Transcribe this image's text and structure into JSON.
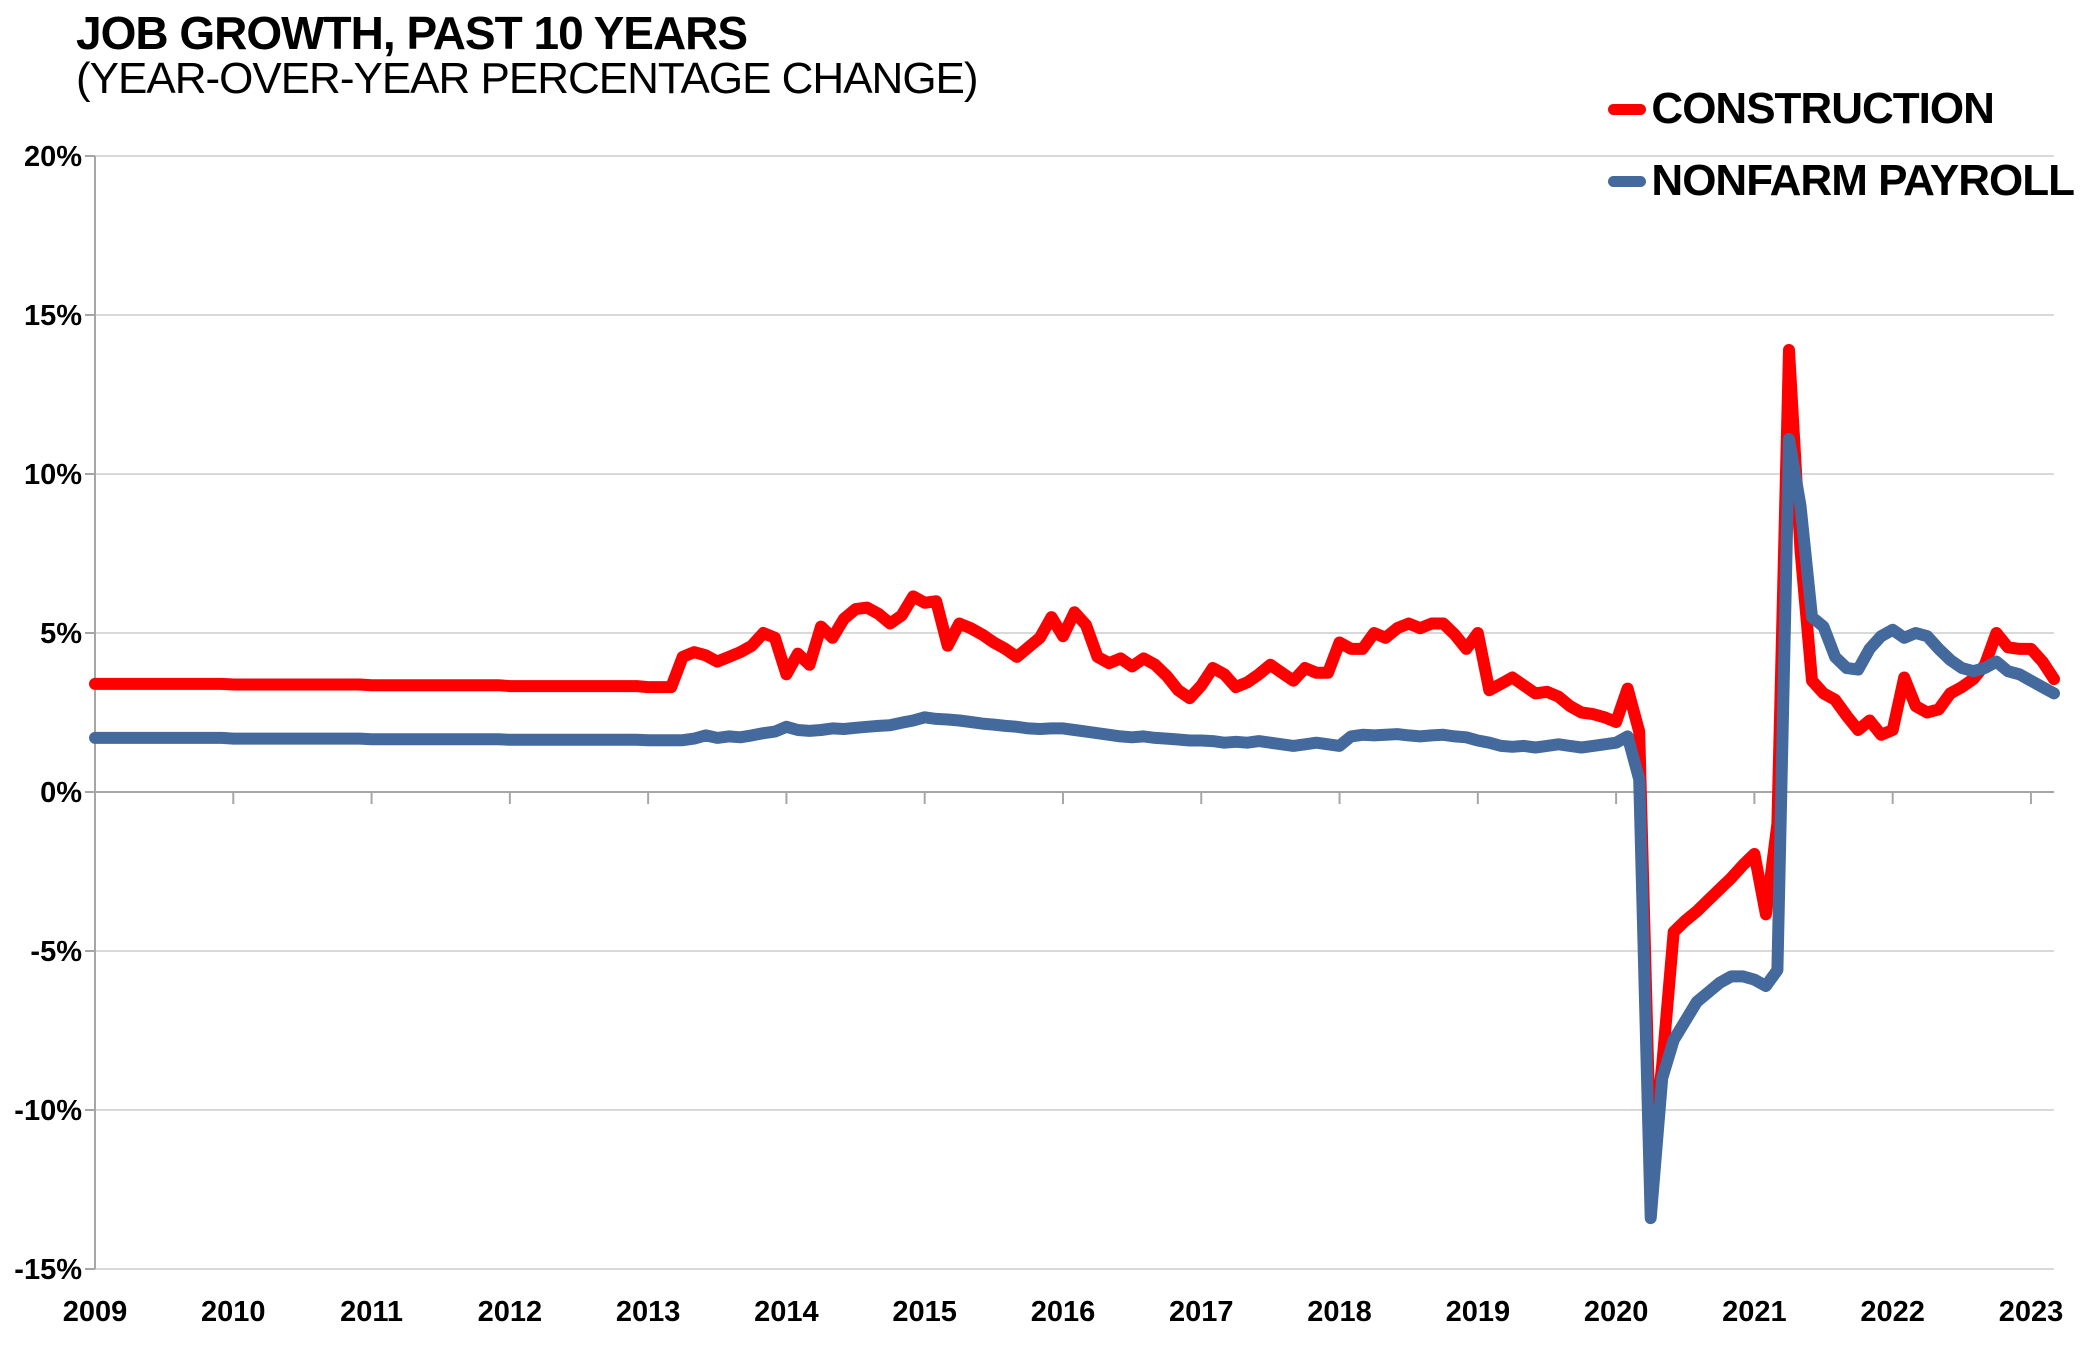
{
  "header": {
    "title": "JOB GROWTH, PAST 10 YEARS",
    "subtitle": "(YEAR-OVER-YEAR PERCENTAGE CHANGE)"
  },
  "legend": {
    "items": [
      {
        "label": "CONSTRUCTION",
        "color": "#FF0000"
      },
      {
        "label": "NONFARM PAYROLL",
        "color": "#44699D"
      }
    ]
  },
  "colors": {
    "gridline": "#D9D9D9",
    "axis_line": "#A6A6A6",
    "text": "#000000",
    "background": "#FFFFFF"
  },
  "chart_data": {
    "type": "line",
    "title": "JOB GROWTH, PAST 10 YEARS",
    "subtitle": "(YEAR-OVER-YEAR PERCENTAGE CHANGE)",
    "x_interval": "monthly",
    "x_start": "2009-01",
    "x_end": "2023-03",
    "x_tick_labels": [
      "2009",
      "2010",
      "2011",
      "2012",
      "2013",
      "2014",
      "2015",
      "2016",
      "2017",
      "2018",
      "2019",
      "2020",
      "2021",
      "2022",
      "2023"
    ],
    "y_tick_values": [
      20,
      15,
      10,
      5,
      0,
      -5,
      -10,
      -15
    ],
    "y_tick_labels": [
      "20%",
      "15%",
      "10%",
      "5%",
      "0%",
      "-5%",
      "-10%",
      "-15%"
    ],
    "ylim": [
      -15,
      20
    ],
    "grid": "horizontal",
    "legend_position": "top-right",
    "series": [
      {
        "name": "CONSTRUCTION",
        "color": "#FF0000",
        "values": [
          3.4,
          3.4,
          3.4,
          3.4,
          3.4,
          3.4,
          3.4,
          3.4,
          3.4,
          3.4,
          3.4,
          3.4,
          3.38,
          3.38,
          3.38,
          3.38,
          3.38,
          3.38,
          3.38,
          3.38,
          3.38,
          3.38,
          3.38,
          3.38,
          3.36,
          3.36,
          3.36,
          3.36,
          3.36,
          3.36,
          3.36,
          3.36,
          3.36,
          3.36,
          3.36,
          3.36,
          3.33,
          3.33,
          3.33,
          3.33,
          3.33,
          3.33,
          3.33,
          3.33,
          3.33,
          3.33,
          3.33,
          3.33,
          3.3,
          3.3,
          3.3,
          4.25,
          4.4,
          4.3,
          4.1,
          4.25,
          4.4,
          4.6,
          5.0,
          4.85,
          3.7,
          4.35,
          4.0,
          5.2,
          4.85,
          5.45,
          5.75,
          5.8,
          5.6,
          5.3,
          5.55,
          6.15,
          5.95,
          6.0,
          4.6,
          5.3,
          5.15,
          4.95,
          4.7,
          4.5,
          4.25,
          4.55,
          4.85,
          5.5,
          4.9,
          5.65,
          5.25,
          4.25,
          4.05,
          4.2,
          3.95,
          4.2,
          4.0,
          3.65,
          3.2,
          2.95,
          3.35,
          3.9,
          3.7,
          3.3,
          3.45,
          3.7,
          4.0,
          3.75,
          3.5,
          3.9,
          3.75,
          3.75,
          4.7,
          4.5,
          4.5,
          5.0,
          4.85,
          5.15,
          5.3,
          5.15,
          5.3,
          5.3,
          4.95,
          4.5,
          5.0,
          3.2,
          3.4,
          3.6,
          3.35,
          3.1,
          3.15,
          3.0,
          2.7,
          2.5,
          2.45,
          2.35,
          2.2,
          3.25,
          1.9,
          -11.7,
          -8.6,
          -4.4,
          -4.05,
          -3.75,
          -3.4,
          -3.05,
          -2.7,
          -2.3,
          -1.95,
          -3.85,
          -1.0,
          13.9,
          7.6,
          3.5,
          3.1,
          2.9,
          2.4,
          1.95,
          2.25,
          1.8,
          1.95,
          3.6,
          2.7,
          2.5,
          2.6,
          3.1,
          3.3,
          3.55,
          4.0,
          5.0,
          4.55,
          4.5,
          4.5,
          4.1,
          3.55
        ]
      },
      {
        "name": "NONFARM PAYROLL",
        "color": "#44699D",
        "values": [
          1.7,
          1.7,
          1.7,
          1.7,
          1.7,
          1.7,
          1.7,
          1.7,
          1.7,
          1.7,
          1.7,
          1.7,
          1.68,
          1.68,
          1.68,
          1.68,
          1.68,
          1.68,
          1.68,
          1.68,
          1.68,
          1.68,
          1.68,
          1.68,
          1.66,
          1.66,
          1.66,
          1.66,
          1.66,
          1.66,
          1.66,
          1.66,
          1.66,
          1.66,
          1.66,
          1.66,
          1.64,
          1.64,
          1.64,
          1.64,
          1.64,
          1.64,
          1.64,
          1.64,
          1.64,
          1.64,
          1.64,
          1.64,
          1.63,
          1.63,
          1.63,
          1.63,
          1.68,
          1.78,
          1.7,
          1.75,
          1.72,
          1.78,
          1.85,
          1.9,
          2.05,
          1.95,
          1.92,
          1.95,
          2.0,
          1.98,
          2.02,
          2.05,
          2.08,
          2.1,
          2.18,
          2.25,
          2.35,
          2.3,
          2.28,
          2.25,
          2.2,
          2.15,
          2.12,
          2.08,
          2.05,
          2.0,
          1.98,
          2.0,
          2.0,
          1.95,
          1.9,
          1.85,
          1.8,
          1.75,
          1.72,
          1.75,
          1.7,
          1.68,
          1.65,
          1.62,
          1.62,
          1.6,
          1.55,
          1.58,
          1.55,
          1.6,
          1.55,
          1.5,
          1.45,
          1.5,
          1.55,
          1.5,
          1.45,
          1.75,
          1.8,
          1.78,
          1.8,
          1.82,
          1.78,
          1.75,
          1.78,
          1.8,
          1.75,
          1.72,
          1.62,
          1.55,
          1.45,
          1.42,
          1.45,
          1.4,
          1.45,
          1.5,
          1.45,
          1.4,
          1.45,
          1.5,
          1.55,
          1.75,
          0.4,
          -13.4,
          -9.0,
          -7.8,
          -7.2,
          -6.6,
          -6.3,
          -6.0,
          -5.8,
          -5.8,
          -5.9,
          -6.1,
          -5.6,
          11.1,
          9.0,
          5.5,
          5.2,
          4.25,
          3.9,
          3.85,
          4.5,
          4.9,
          5.1,
          4.85,
          5.0,
          4.9,
          4.5,
          4.15,
          3.9,
          3.8,
          3.9,
          4.1,
          3.8,
          3.7,
          3.5,
          3.3,
          3.1
        ]
      }
    ]
  }
}
